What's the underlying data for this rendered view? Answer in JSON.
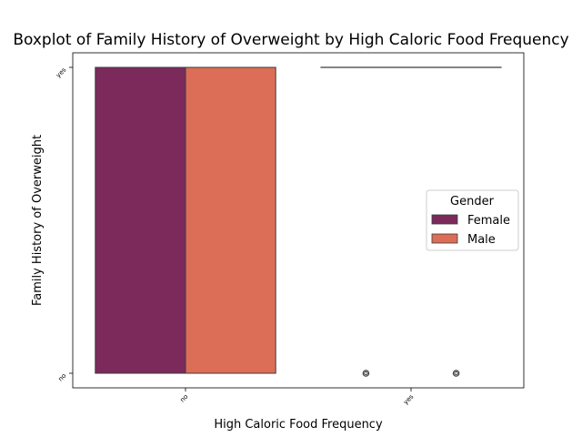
{
  "chart_data": {
    "type": "boxplot",
    "title": "Boxplot of Family History of Overweight by High Caloric Food Frequency",
    "xlabel": "High Caloric Food Frequency",
    "ylabel": "Family History of Overweight",
    "categories": [
      "no",
      "yes"
    ],
    "y_categories": [
      "no",
      "yes"
    ],
    "legend": {
      "title": "Gender",
      "position": "center-right"
    },
    "series": [
      {
        "name": "Female",
        "color": "#7b2a5b",
        "boxes": [
          {
            "category": "no",
            "whisker_low": "no",
            "q1": "no",
            "median": "no",
            "q3": "yes",
            "whisker_high": "yes",
            "outliers": []
          },
          {
            "category": "yes",
            "whisker_low": "yes",
            "q1": "yes",
            "median": "yes",
            "q3": "yes",
            "whisker_high": "yes",
            "outliers": [
              "no"
            ]
          }
        ]
      },
      {
        "name": "Male",
        "color": "#dc6d57",
        "boxes": [
          {
            "category": "no",
            "whisker_low": "no",
            "q1": "no",
            "median": "no",
            "q3": "yes",
            "whisker_high": "yes",
            "outliers": []
          },
          {
            "category": "yes",
            "whisker_low": "yes",
            "q1": "yes",
            "median": "yes",
            "q3": "yes",
            "whisker_high": "yes",
            "outliers": [
              "no"
            ]
          }
        ]
      }
    ]
  }
}
